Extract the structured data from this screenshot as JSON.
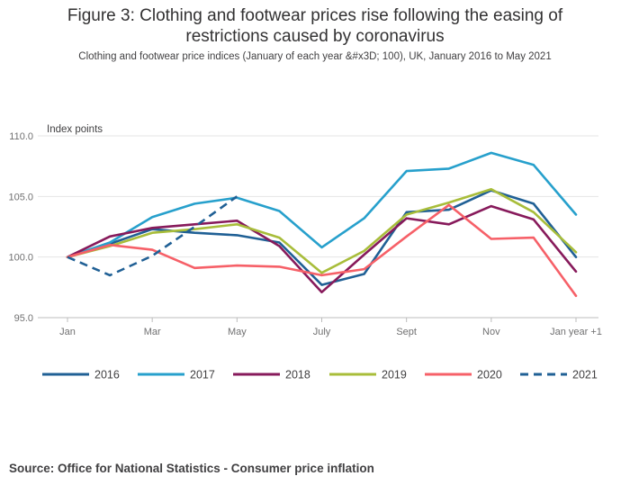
{
  "header": {
    "title_line1": "Figure 3: Clothing and footwear prices rise following the easing of",
    "title_line2": "restrictions caused by coronavirus",
    "subtitle": "Clothing and footwear price indices (January of each year &#x3D; 100), UK, January 2016 to May 2021"
  },
  "chart_data": {
    "type": "line",
    "title": "Figure 3: Clothing and footwear prices rise following the easing of restrictions caused by coronavirus",
    "ylabel": "Index points",
    "xlabel": "",
    "ylim": [
      95,
      110
    ],
    "yticks": [
      "110.0",
      "105.0",
      "100.0",
      "95.0"
    ],
    "ytick_values": [
      110,
      105,
      100,
      95
    ],
    "categories": [
      "Jan",
      "Feb",
      "Mar",
      "Apr",
      "May",
      "Jun",
      "July",
      "Aug",
      "Sept",
      "Oct",
      "Nov",
      "Dec",
      "Jan year +1"
    ],
    "xtick_labels": [
      "Jan",
      "Mar",
      "May",
      "July",
      "Sept",
      "Nov",
      "Jan year +1"
    ],
    "xtick_indices": [
      0,
      2,
      4,
      6,
      8,
      10,
      12
    ],
    "grid": true,
    "legend_position": "bottom",
    "series": [
      {
        "name": "2016",
        "color": "#206095",
        "dash": false,
        "values": [
          100.0,
          101.1,
          102.3,
          102.0,
          101.8,
          101.2,
          97.7,
          98.6,
          103.7,
          103.9,
          105.5,
          104.4,
          100.0
        ]
      },
      {
        "name": "2017",
        "color": "#27a0cc",
        "dash": false,
        "values": [
          100.0,
          101.2,
          103.3,
          104.4,
          104.9,
          103.8,
          100.8,
          103.2,
          107.1,
          107.3,
          108.6,
          107.6,
          103.5
        ]
      },
      {
        "name": "2018",
        "color": "#871a5b",
        "dash": false,
        "values": [
          100.0,
          101.7,
          102.4,
          102.7,
          103.0,
          100.9,
          97.1,
          100.2,
          103.2,
          102.7,
          104.2,
          103.1,
          98.8
        ]
      },
      {
        "name": "2019",
        "color": "#a8bd3a",
        "dash": false,
        "values": [
          100.0,
          100.9,
          102.0,
          102.3,
          102.7,
          101.6,
          98.7,
          100.5,
          103.5,
          104.5,
          105.6,
          103.7,
          100.4
        ]
      },
      {
        "name": "2020",
        "color": "#f66068",
        "dash": false,
        "values": [
          100.0,
          101.0,
          100.6,
          99.1,
          99.3,
          99.2,
          98.5,
          99.0,
          101.7,
          104.3,
          101.5,
          101.6,
          96.8
        ]
      },
      {
        "name": "2021",
        "color": "#206095",
        "dash": true,
        "values": [
          100.0,
          98.5,
          100.1,
          102.5,
          105.0,
          null,
          null,
          null,
          null,
          null,
          null,
          null,
          null
        ]
      }
    ]
  },
  "footer": {
    "source": "Source: Office for National Statistics - Consumer price inflation"
  }
}
